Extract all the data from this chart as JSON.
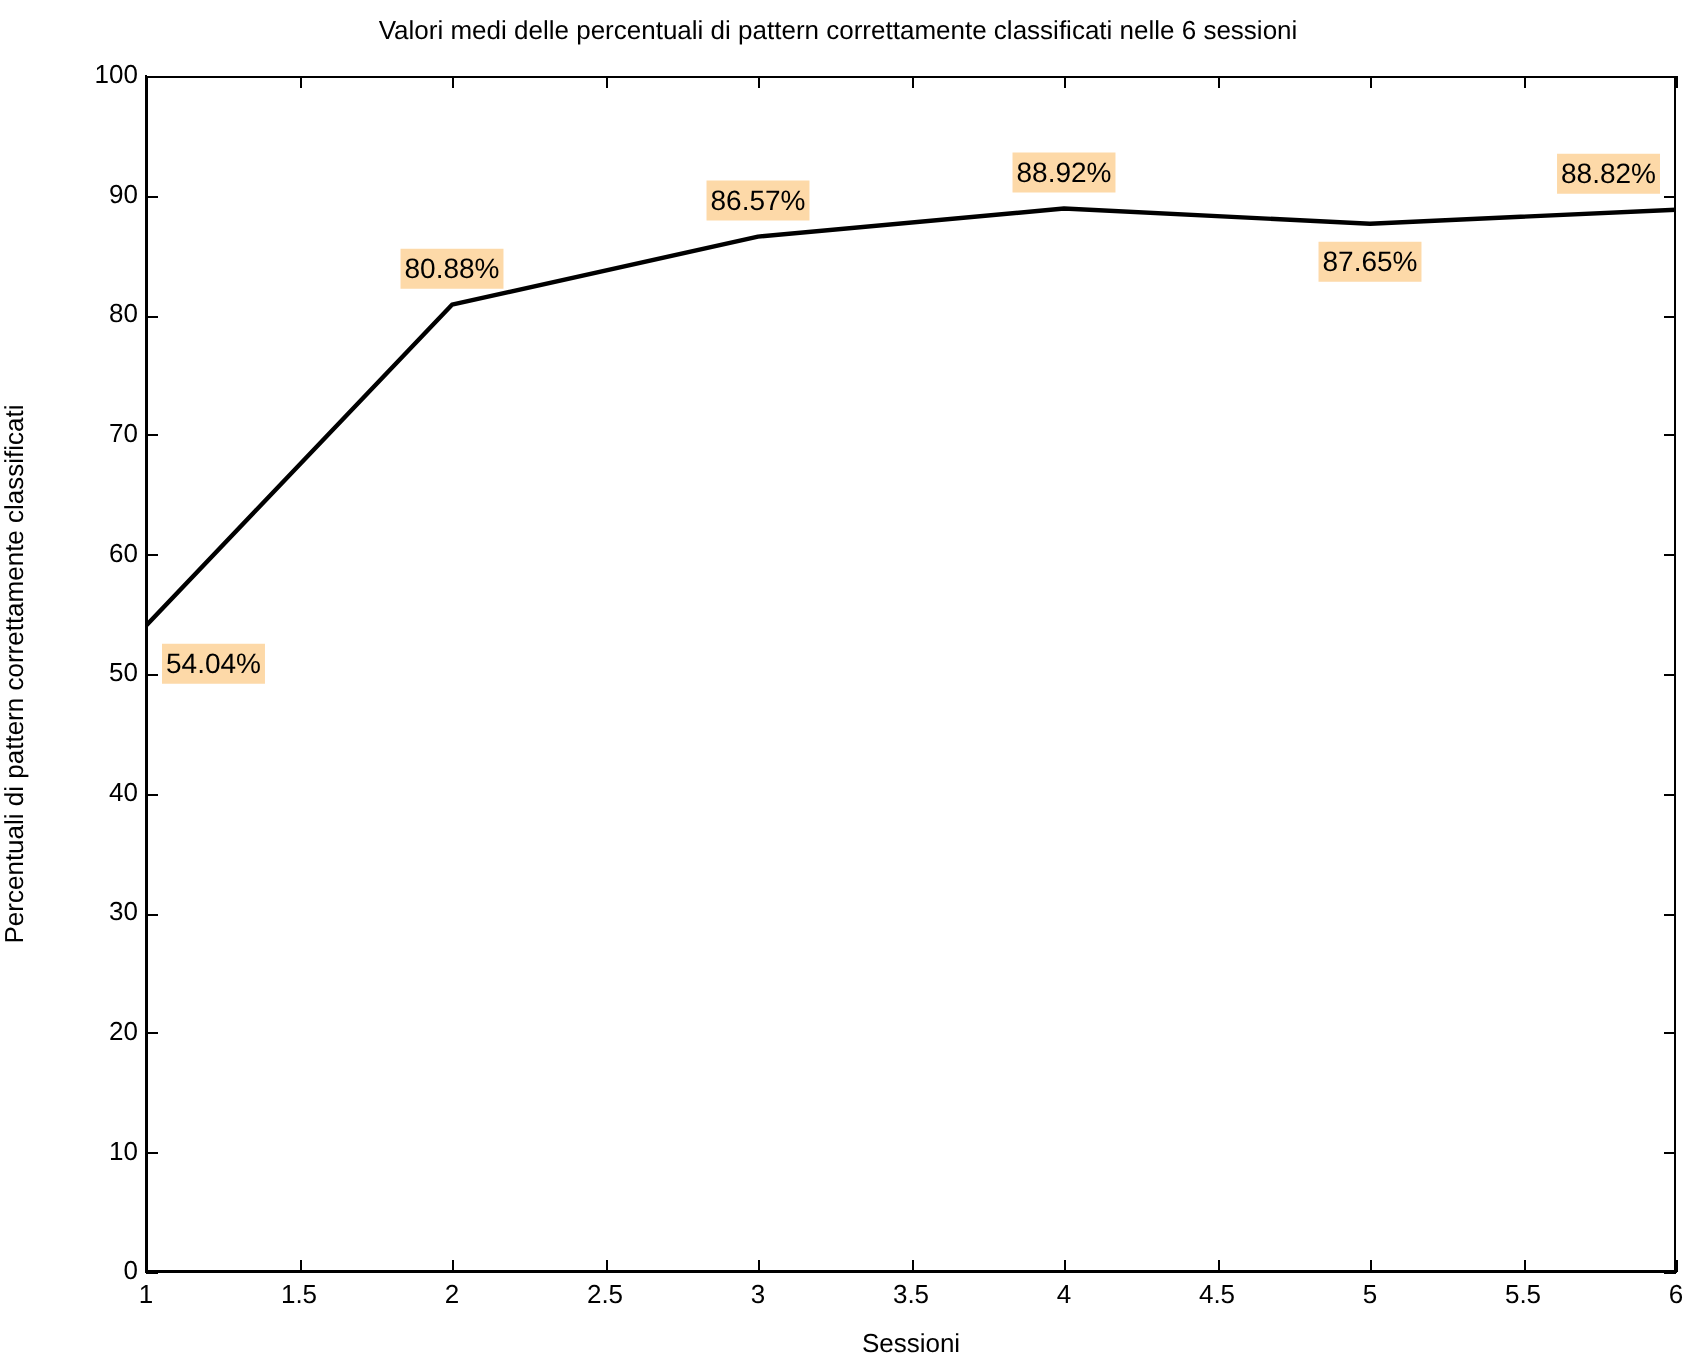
{
  "chart_data": {
    "type": "line",
    "title": "Valori medi delle percentuali di pattern correttamente classificati nelle 6 sessioni",
    "xlabel": "Sessioni",
    "ylabel": "Percentuali di pattern correttamente classificati",
    "x": [
      1,
      2,
      3,
      4,
      5,
      6
    ],
    "series": [
      {
        "color": "#000000",
        "values": [
          54.04,
          80.88,
          86.57,
          88.92,
          87.65,
          88.82
        ],
        "value_labels": [
          "54.04%",
          "80.88%",
          "86.57%",
          "88.92%",
          "87.65%",
          "88.82%"
        ]
      }
    ],
    "xlim": [
      1,
      6
    ],
    "xticks": [
      1,
      1.5,
      2,
      2.5,
      3,
      3.5,
      4,
      4.5,
      5,
      5.5,
      6
    ],
    "ylim": [
      0,
      100
    ],
    "yticks": [
      0,
      10,
      20,
      30,
      40,
      50,
      60,
      70,
      80,
      90,
      100
    ],
    "grid": false,
    "legend": false,
    "marker": "none",
    "line_style": "solid"
  }
}
